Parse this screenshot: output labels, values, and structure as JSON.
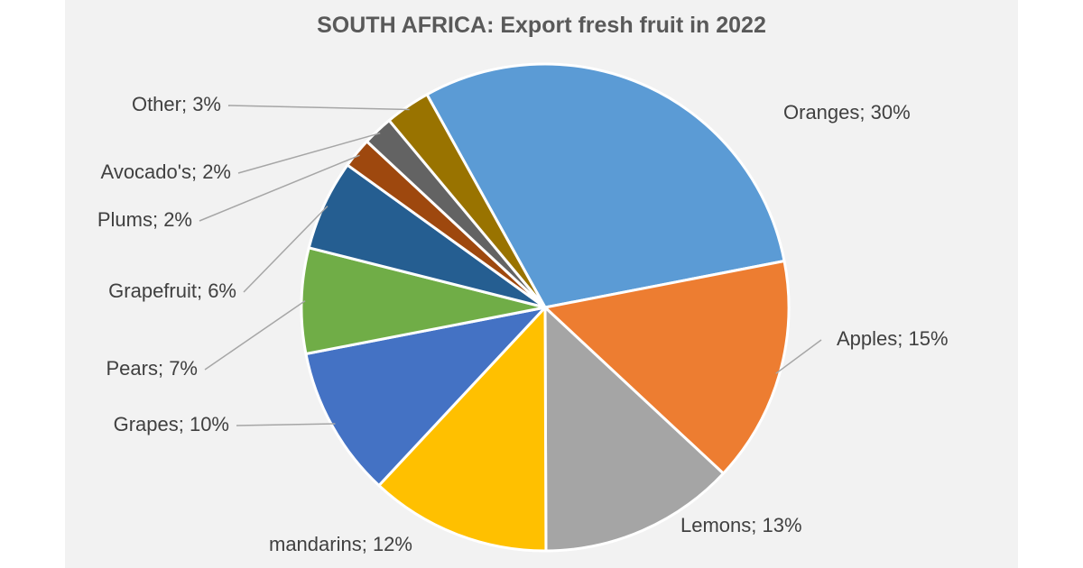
{
  "chart_data": {
    "type": "pie",
    "title": "SOUTH AFRICA: Export fresh fruit in 2022",
    "slices": [
      {
        "label": "Oranges; 30%",
        "value": 30,
        "color": "#5b9bd5"
      },
      {
        "label": "Apples; 15%",
        "value": 15,
        "color": "#ed7d31"
      },
      {
        "label": "Lemons; 13%",
        "value": 13,
        "color": "#a5a5a5"
      },
      {
        "label": "mandarins; 12%",
        "value": 12,
        "color": "#ffc000"
      },
      {
        "label": "Grapes; 10%",
        "value": 10,
        "color": "#4472c4"
      },
      {
        "label": "Pears; 7%",
        "value": 7,
        "color": "#70ad47"
      },
      {
        "label": "Grapefruit; 6%",
        "value": 6,
        "color": "#255e91"
      },
      {
        "label": "Plums; 2%",
        "value": 2,
        "color": "#9e480e"
      },
      {
        "label": "Avocado's; 2%",
        "value": 2,
        "color": "#636363"
      },
      {
        "label": "Other; 3%",
        "value": 3,
        "color": "#997300"
      }
    ]
  }
}
